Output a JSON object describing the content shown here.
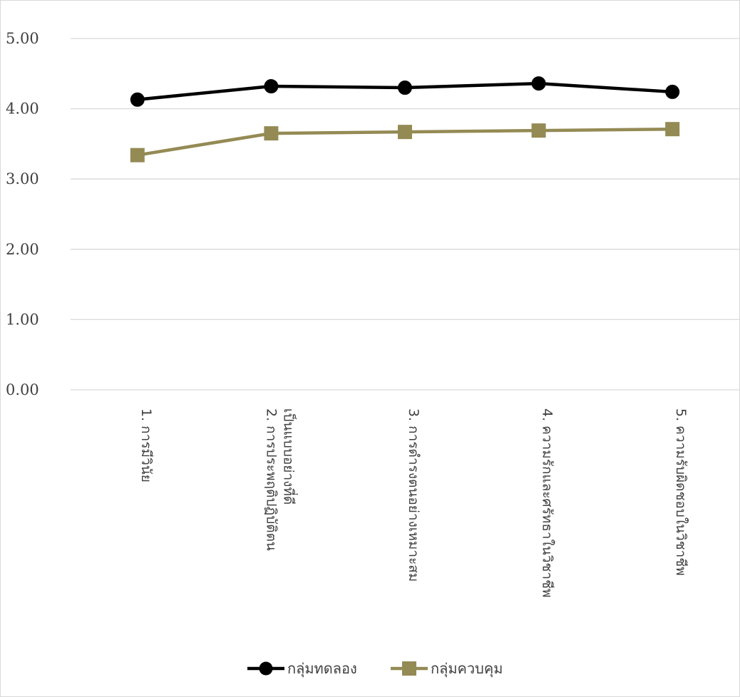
{
  "chart_data": {
    "type": "line",
    "categories": [
      [
        "1. การมีวินัย"
      ],
      [
        "2. การประพฤติปฏิบัติตน",
        "เป็นแบบอย่างที่ดี"
      ],
      [
        "3. การดำรงตนอย่างเหมาะสม"
      ],
      [
        "4. ความรักและศรัทธาในวิชาชีพ"
      ],
      [
        "5. ความรับผิดชอบในวิชาชีพ"
      ]
    ],
    "series": [
      {
        "name": "กลุ่มทดลอง",
        "values": [
          4.13,
          4.32,
          4.3,
          4.36,
          4.24
        ],
        "color": "#000000",
        "marker": "circle"
      },
      {
        "name": "กลุ่มควบคุม",
        "values": [
          3.34,
          3.65,
          3.67,
          3.69,
          3.71
        ],
        "color": "#948a54",
        "marker": "square"
      }
    ],
    "yticks": [
      "0.00",
      "1.00",
      "2.00",
      "3.00",
      "4.00",
      "5.00"
    ],
    "ylim": [
      0,
      5
    ],
    "grid": true,
    "legend_position": "bottom",
    "title": "",
    "xlabel": "",
    "ylabel": ""
  }
}
